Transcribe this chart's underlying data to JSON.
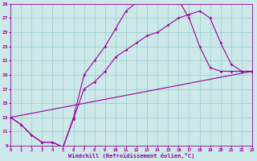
{
  "xlabel": "Windchill (Refroidissement éolien,°C)",
  "bg_color": "#cce8e8",
  "grid_color": "#99cccc",
  "line_color": "#990099",
  "xlim": [
    0,
    23
  ],
  "ylim": [
    9,
    29
  ],
  "xticks": [
    0,
    1,
    2,
    3,
    4,
    5,
    6,
    7,
    8,
    9,
    10,
    11,
    12,
    13,
    14,
    15,
    16,
    17,
    18,
    19,
    20,
    21,
    22,
    23
  ],
  "yticks": [
    9,
    11,
    13,
    15,
    17,
    19,
    21,
    23,
    25,
    27,
    29
  ],
  "curve1_x": [
    0,
    1,
    2,
    3,
    4,
    5,
    6,
    7,
    8,
    9,
    10,
    11,
    12,
    13,
    14,
    15,
    16,
    17,
    18,
    19,
    20,
    21,
    22,
    23
  ],
  "curve1_y": [
    13,
    12,
    10.5,
    9.5,
    9.5,
    8.8,
    13.0,
    19.0,
    21.0,
    23.0,
    25.5,
    28.0,
    29.2,
    29.3,
    29.5,
    29.2,
    29.5,
    27.0,
    23.0,
    20.0,
    19.5,
    19.5,
    19.5,
    19.5
  ],
  "curve2_x": [
    0,
    1,
    2,
    3,
    4,
    5,
    6,
    7,
    8,
    9,
    10,
    11,
    12,
    13,
    14,
    15,
    16,
    17,
    18,
    19,
    20,
    21,
    22,
    23
  ],
  "curve2_y": [
    13,
    12,
    10.5,
    9.5,
    9.5,
    8.8,
    12.8,
    17.0,
    18.0,
    19.5,
    21.5,
    22.5,
    23.5,
    24.5,
    25.0,
    26.0,
    27.0,
    27.5,
    28.0,
    27.0,
    23.5,
    20.5,
    19.5,
    19.5
  ],
  "curve3_x": [
    0,
    23
  ],
  "curve3_y": [
    13,
    19.5
  ]
}
